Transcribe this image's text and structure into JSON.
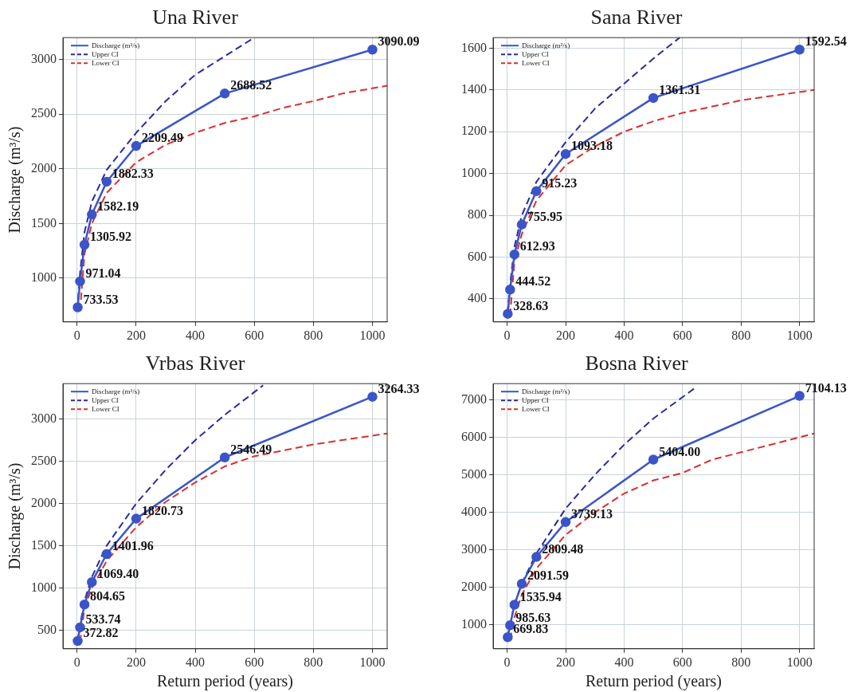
{
  "chart_data": [
    {
      "type": "line",
      "title": "Una River",
      "ylabel": "Discharge (m³/s)",
      "xlim": [
        -48,
        1050
      ],
      "ylim": [
        600,
        3200
      ],
      "xticks": [
        0,
        200,
        400,
        600,
        800,
        1000
      ],
      "yticks": [
        1000,
        1500,
        2000,
        2500,
        3000
      ],
      "grid": true,
      "legend": "top left",
      "series": [
        {
          "name": "Discharge (m³/s)",
          "color": "#3b55c8",
          "marker": "circle",
          "line_style": "solid",
          "x": [
            2,
            10,
            25,
            50,
            100,
            200,
            500,
            1000
          ],
          "values": [
            733.53,
            971.04,
            1305.92,
            1582.19,
            1882.33,
            2209.49,
            2688.52,
            3090.09
          ],
          "value_labels": [
            "733.53",
            "971.04",
            "1305.92",
            "1582.19",
            "1882.33",
            "2209.49",
            "2688.52",
            "3090.09"
          ]
        },
        {
          "name": "Upper CI",
          "color": "#2a2aa0",
          "marker": "none",
          "line_style": "dashed",
          "x": [
            0,
            2,
            10,
            25,
            50,
            100,
            200,
            300,
            400,
            500,
            600
          ],
          "values": [
            700,
            760,
            1050,
            1420,
            1700,
            1990,
            2330,
            2620,
            2860,
            3030,
            3200
          ]
        },
        {
          "name": "Lower CI",
          "color": "#d93030",
          "marker": "none",
          "line_style": "dashed",
          "x": [
            10,
            25,
            50,
            100,
            200,
            300,
            400,
            500,
            600,
            700,
            800,
            900,
            1050
          ],
          "values": [
            700,
            1220,
            1500,
            1780,
            2060,
            2220,
            2330,
            2420,
            2480,
            2560,
            2620,
            2690,
            2760
          ]
        }
      ]
    },
    {
      "type": "line",
      "title": "Sana River",
      "xlim": [
        -48,
        1050
      ],
      "ylim": [
        290,
        1650
      ],
      "xticks": [
        0,
        200,
        400,
        600,
        800,
        1000
      ],
      "yticks": [
        400,
        600,
        800,
        1000,
        1200,
        1400,
        1600
      ],
      "grid": true,
      "legend": "top left",
      "series": [
        {
          "name": "Discharge (m³/s)",
          "color": "#3b55c8",
          "marker": "circle",
          "line_style": "solid",
          "x": [
            2,
            10,
            25,
            50,
            100,
            200,
            500,
            1000
          ],
          "values": [
            328.63,
            444.52,
            612.93,
            755.95,
            915.23,
            1093.18,
            1361.31,
            1592.54
          ],
          "value_labels": [
            "328.63",
            "444.52",
            "612.93",
            "755.95",
            "915.23",
            "1093.18",
            "1361.31",
            "1592.54"
          ]
        },
        {
          "name": "Upper CI",
          "color": "#2a2aa0",
          "marker": "none",
          "line_style": "dashed",
          "x": [
            0,
            2,
            10,
            25,
            50,
            100,
            200,
            300,
            400,
            500,
            590
          ],
          "values": [
            330,
            345,
            470,
            650,
            800,
            960,
            1150,
            1310,
            1430,
            1550,
            1650
          ]
        },
        {
          "name": "Lower CI",
          "color": "#d93030",
          "marker": "none",
          "line_style": "dashed",
          "x": [
            10,
            25,
            50,
            100,
            200,
            300,
            400,
            500,
            600,
            800,
            1050
          ],
          "values": [
            320,
            580,
            710,
            870,
            1040,
            1130,
            1200,
            1250,
            1290,
            1350,
            1400
          ]
        }
      ]
    },
    {
      "type": "line",
      "title": "Vrbas River",
      "xlabel": "Return period (years)",
      "ylabel": "Discharge (m³/s)",
      "xlim": [
        -48,
        1050
      ],
      "ylim": [
        280,
        3420
      ],
      "xticks": [
        0,
        200,
        400,
        600,
        800,
        1000
      ],
      "yticks": [
        500,
        1000,
        1500,
        2000,
        2500,
        3000
      ],
      "grid": true,
      "legend": "top left",
      "series": [
        {
          "name": "Discharge (m³/s)",
          "color": "#3b55c8",
          "marker": "circle",
          "line_style": "solid",
          "x": [
            2,
            10,
            25,
            50,
            100,
            200,
            500,
            1000
          ],
          "values": [
            372.82,
            533.74,
            804.65,
            1069.4,
            1401.96,
            1820.73,
            2546.49,
            3264.33
          ],
          "value_labels": [
            "372.82",
            "533.74",
            "804.65",
            "1069.40",
            "1401.96",
            "1820.73",
            "2546.49",
            "3264.33"
          ]
        },
        {
          "name": "Upper CI",
          "color": "#2a2aa0",
          "marker": "none",
          "line_style": "dashed",
          "x": [
            0,
            2,
            10,
            25,
            50,
            100,
            200,
            300,
            400,
            500,
            630
          ],
          "values": [
            360,
            400,
            560,
            850,
            1130,
            1500,
            2000,
            2400,
            2750,
            3050,
            3400
          ]
        },
        {
          "name": "Lower CI",
          "color": "#d93030",
          "marker": "none",
          "line_style": "dashed",
          "x": [
            10,
            25,
            50,
            100,
            200,
            300,
            400,
            500,
            600,
            800,
            1050
          ],
          "values": [
            360,
            760,
            1000,
            1320,
            1720,
            2020,
            2250,
            2440,
            2560,
            2700,
            2830
          ]
        }
      ]
    },
    {
      "type": "line",
      "title": "Bosna River",
      "xlabel": "Return period (years)",
      "xlim": [
        -48,
        1050
      ],
      "ylim": [
        360,
        7430
      ],
      "xticks": [
        0,
        200,
        400,
        600,
        800,
        1000
      ],
      "yticks": [
        1000,
        2000,
        3000,
        4000,
        5000,
        6000,
        7000
      ],
      "grid": true,
      "legend": "top left",
      "series": [
        {
          "name": "Discharge (m³/s)",
          "color": "#3b55c8",
          "marker": "circle",
          "line_style": "solid",
          "x": [
            2,
            10,
            25,
            50,
            100,
            200,
            500,
            1000
          ],
          "values": [
            669.83,
            985.63,
            1535.94,
            2091.59,
            2809.48,
            3739.13,
            5404,
            7104.13
          ],
          "value_labels": [
            "669.83",
            "985.63",
            "1535.94",
            "2091.59",
            "2809.48",
            "3739.13",
            "5404.00",
            "7104.13"
          ]
        },
        {
          "name": "Upper CI",
          "color": "#2a2aa0",
          "marker": "none",
          "line_style": "dashed",
          "x": [
            0,
            2,
            10,
            25,
            50,
            100,
            200,
            300,
            400,
            500,
            640
          ],
          "values": [
            650,
            720,
            1000,
            1550,
            2100,
            2900,
            4100,
            5000,
            5800,
            6500,
            7300
          ]
        },
        {
          "name": "Lower CI",
          "color": "#d93030",
          "marker": "none",
          "line_style": "dashed",
          "x": [
            10,
            25,
            50,
            100,
            200,
            300,
            400,
            500,
            600,
            700,
            800,
            1050
          ],
          "values": [
            600,
            1200,
            1800,
            2500,
            3400,
            4000,
            4500,
            4850,
            5050,
            5400,
            5600,
            6100
          ]
        }
      ]
    }
  ]
}
